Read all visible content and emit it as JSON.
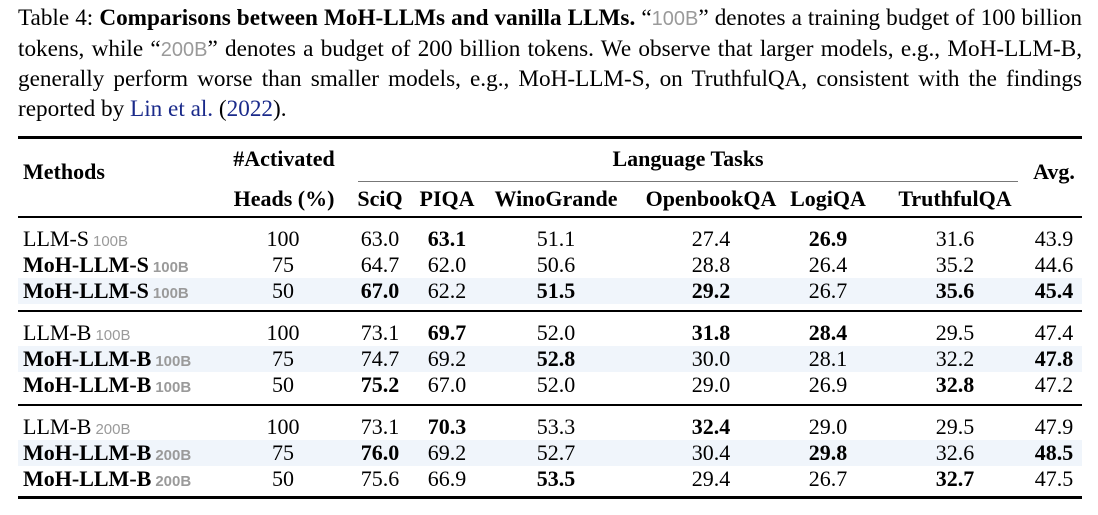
{
  "caption": {
    "label": "Table 4:",
    "title": "Comparisons between MoH-LLMs and vanilla LLMs.",
    "budget_100": "100B",
    "budget_200": "200B",
    "part1": "“",
    "part2": "” denotes a training budget of 100 billion tokens, while “",
    "part3": "” denotes a budget of 200 billion tokens. We observe that larger models, e.g., MoH-LLM-B, generally perform worse than smaller models, e.g., MoH-LLM-S, on TruthfulQA, consistent with the findings reported by ",
    "cite_author": "Lin et al.",
    "cite_year": "2022",
    "part4": ")."
  },
  "table": {
    "header": {
      "methods": "Methods",
      "activated_line1": "#Activated",
      "activated_line2": "Heads (%)",
      "language_tasks": "Language Tasks",
      "avg": "Avg.",
      "tasks": [
        "SciQ",
        "PIQA",
        "WinoGrande",
        "OpenbookQA",
        "LogiQA",
        "TruthfulQA"
      ]
    },
    "groups": [
      {
        "rows": [
          {
            "name": "LLM-S",
            "budget": "100B",
            "bold_name": false,
            "heads": "100",
            "values": [
              "63.0",
              "63.1",
              "51.1",
              "27.4",
              "26.9",
              "31.6"
            ],
            "avg": "43.9",
            "bold": [
              false,
              true,
              false,
              false,
              true,
              false
            ],
            "bold_avg": false,
            "shaded": false
          },
          {
            "name": "MoH-LLM-S",
            "budget": "100B",
            "bold_name": true,
            "heads": "75",
            "values": [
              "64.7",
              "62.0",
              "50.6",
              "28.8",
              "26.4",
              "35.2"
            ],
            "avg": "44.6",
            "bold": [
              false,
              false,
              false,
              false,
              false,
              false
            ],
            "bold_avg": false,
            "shaded": false
          },
          {
            "name": "MoH-LLM-S",
            "budget": "100B",
            "bold_name": true,
            "heads": "50",
            "values": [
              "67.0",
              "62.2",
              "51.5",
              "29.2",
              "26.7",
              "35.6"
            ],
            "avg": "45.4",
            "bold": [
              true,
              false,
              true,
              true,
              false,
              true
            ],
            "bold_avg": true,
            "shaded": true
          }
        ]
      },
      {
        "rows": [
          {
            "name": "LLM-B",
            "budget": "100B",
            "bold_name": false,
            "heads": "100",
            "values": [
              "73.1",
              "69.7",
              "52.0",
              "31.8",
              "28.4",
              "29.5"
            ],
            "avg": "47.4",
            "bold": [
              false,
              true,
              false,
              true,
              true,
              false
            ],
            "bold_avg": false,
            "shaded": false
          },
          {
            "name": "MoH-LLM-B",
            "budget": "100B",
            "bold_name": true,
            "heads": "75",
            "values": [
              "74.7",
              "69.2",
              "52.8",
              "30.0",
              "28.1",
              "32.2"
            ],
            "avg": "47.8",
            "bold": [
              false,
              false,
              true,
              false,
              false,
              false
            ],
            "bold_avg": true,
            "shaded": true
          },
          {
            "name": "MoH-LLM-B",
            "budget": "100B",
            "bold_name": true,
            "heads": "50",
            "values": [
              "75.2",
              "67.0",
              "52.0",
              "29.0",
              "26.9",
              "32.8"
            ],
            "avg": "47.2",
            "bold": [
              true,
              false,
              false,
              false,
              false,
              true
            ],
            "bold_avg": false,
            "shaded": false
          }
        ]
      },
      {
        "rows": [
          {
            "name": "LLM-B",
            "budget": "200B",
            "bold_name": false,
            "heads": "100",
            "values": [
              "73.1",
              "70.3",
              "53.3",
              "32.4",
              "29.0",
              "29.5"
            ],
            "avg": "47.9",
            "bold": [
              false,
              true,
              false,
              true,
              false,
              false
            ],
            "bold_avg": false,
            "shaded": false
          },
          {
            "name": "MoH-LLM-B",
            "budget": "200B",
            "bold_name": true,
            "heads": "75",
            "values": [
              "76.0",
              "69.2",
              "52.7",
              "30.4",
              "29.8",
              "32.6"
            ],
            "avg": "48.5",
            "bold": [
              true,
              false,
              false,
              false,
              true,
              false
            ],
            "bold_avg": true,
            "shaded": true
          },
          {
            "name": "MoH-LLM-B",
            "budget": "200B",
            "bold_name": true,
            "heads": "50",
            "values": [
              "75.6",
              "66.9",
              "53.5",
              "29.4",
              "26.7",
              "32.7"
            ],
            "avg": "47.5",
            "bold": [
              false,
              false,
              true,
              false,
              false,
              true
            ],
            "bold_avg": false,
            "shaded": false
          }
        ]
      }
    ]
  }
}
